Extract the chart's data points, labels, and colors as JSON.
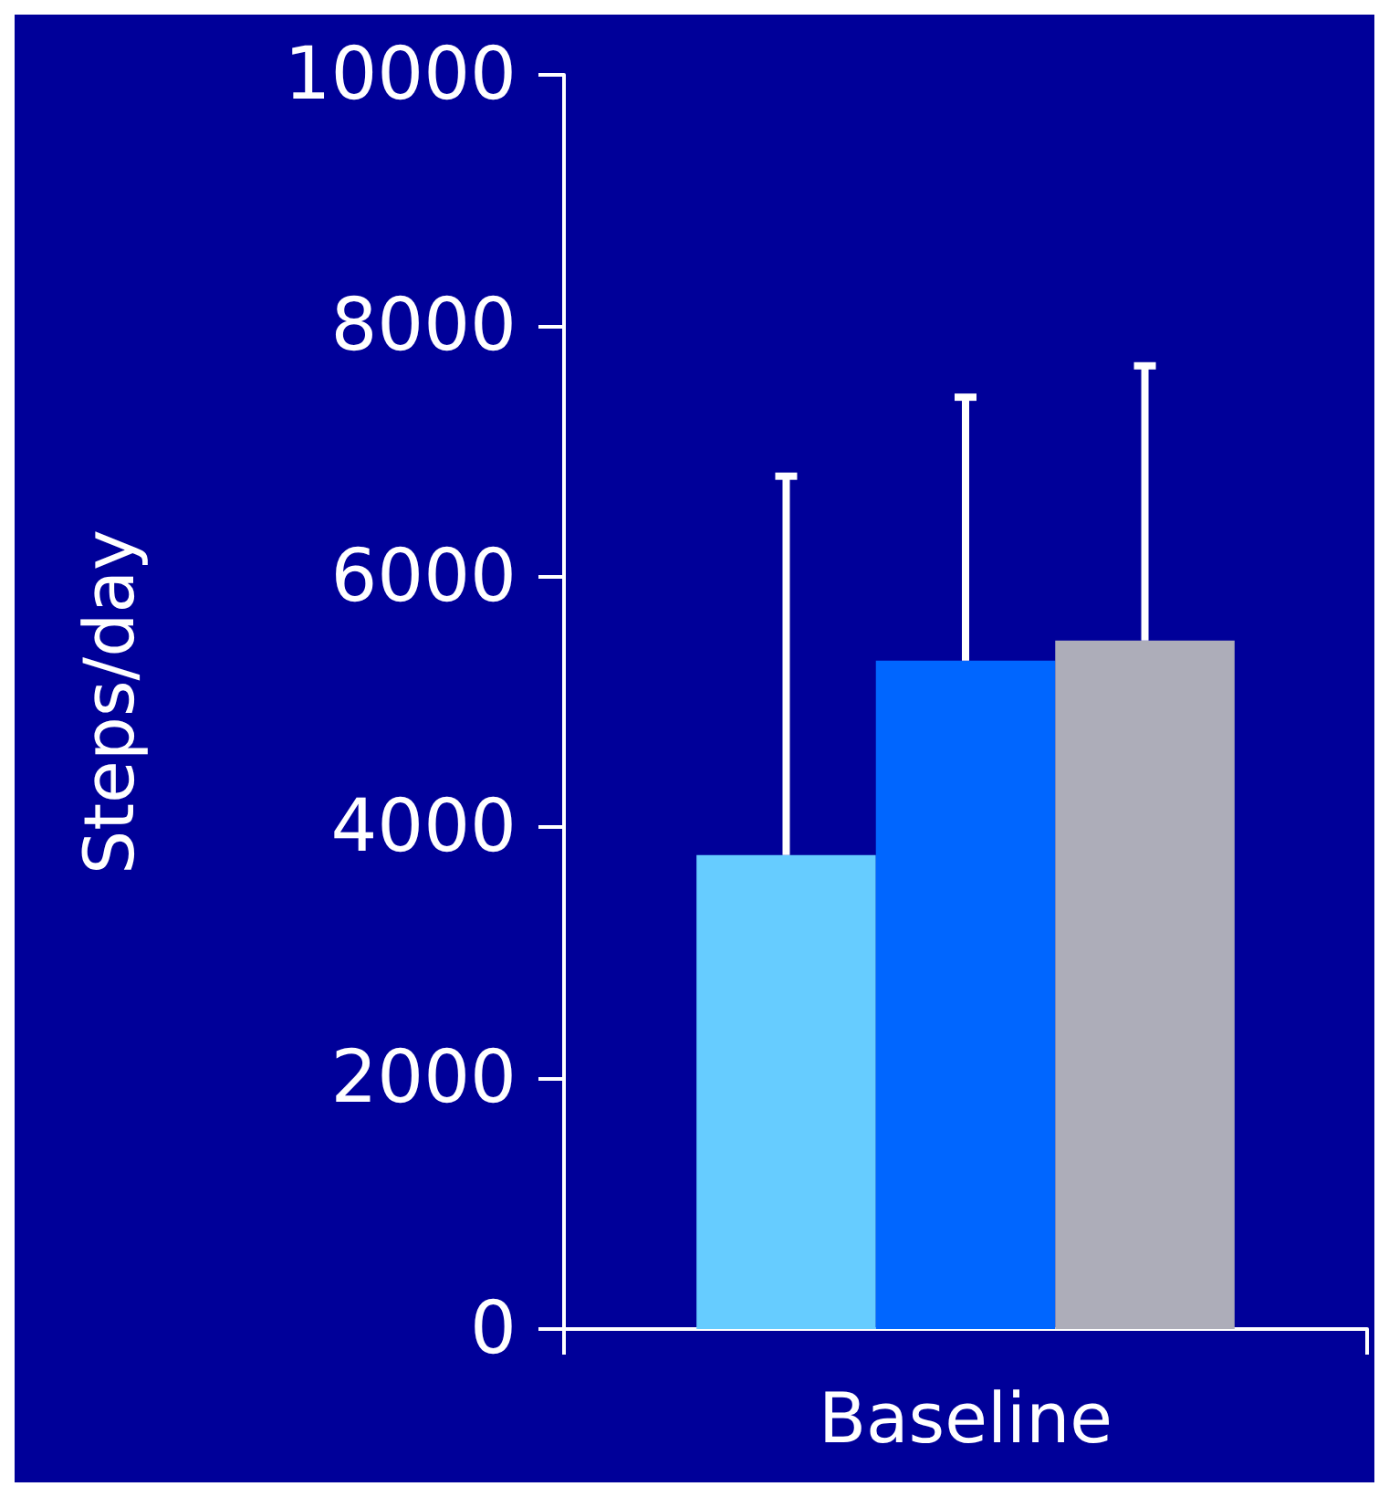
{
  "chart_data": {
    "type": "bar",
    "ylabel": "Steps/day",
    "categories": [
      "Baseline"
    ],
    "series": [
      {
        "color": "#66ccff",
        "values": [
          3780
        ],
        "errors": [
          [
            3780,
            6800
          ]
        ]
      },
      {
        "color": "#0066ff",
        "values": [
          5330
        ],
        "errors": [
          [
            5330,
            7430
          ]
        ]
      },
      {
        "color": "#adadb9",
        "values": [
          5490
        ],
        "errors": [
          [
            5490,
            7680
          ]
        ]
      }
    ],
    "ylim": [
      0,
      10000
    ],
    "yticks": [
      0,
      2000,
      4000,
      6000,
      8000,
      10000
    ],
    "grid": false
  }
}
